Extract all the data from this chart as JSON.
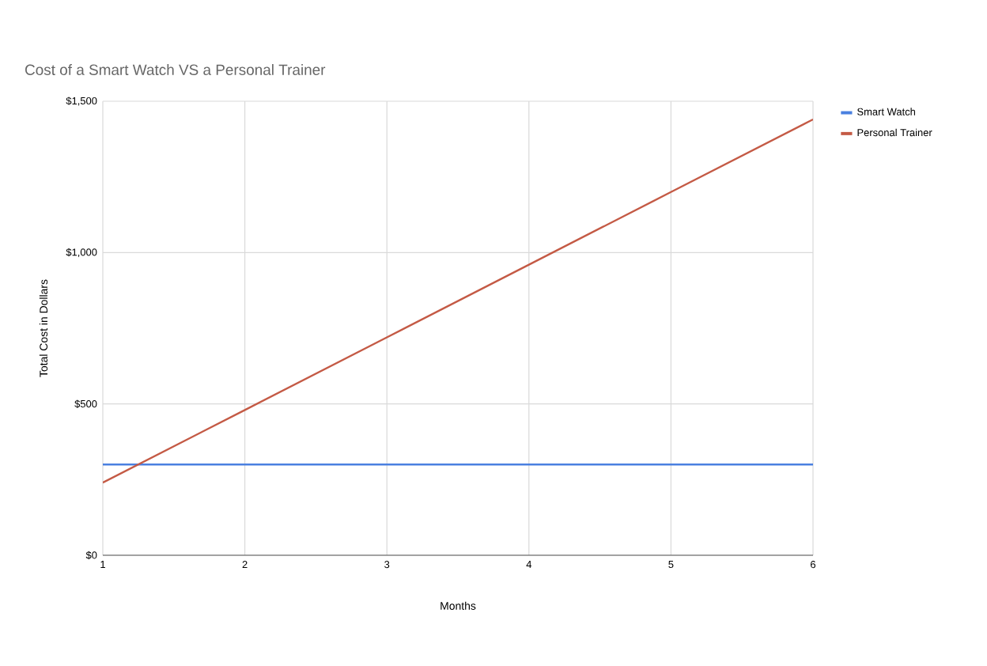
{
  "chart_data": {
    "type": "line",
    "title": "Cost of a Smart Watch VS a Personal Trainer",
    "xlabel": "Months",
    "ylabel": "Total Cost in Dollars",
    "x": [
      1,
      2,
      3,
      4,
      5,
      6
    ],
    "series": [
      {
        "name": "Smart Watch",
        "color": "#4a80e0",
        "values": [
          300,
          300,
          300,
          300,
          300,
          300
        ]
      },
      {
        "name": "Personal Trainer",
        "color": "#c45a45",
        "values": [
          240,
          480,
          720,
          960,
          1200,
          1440
        ]
      }
    ],
    "xlim": [
      1,
      6
    ],
    "ylim": [
      0,
      1500
    ],
    "xticks": [
      1,
      2,
      3,
      4,
      5,
      6
    ],
    "yticks": [
      {
        "value": 0,
        "label": "$0"
      },
      {
        "value": 500,
        "label": "$500"
      },
      {
        "value": 1000,
        "label": "$1,000"
      },
      {
        "value": 1500,
        "label": "$1,500"
      }
    ],
    "grid": true,
    "legend": "top right",
    "marker": "none",
    "line_style": "solid"
  }
}
